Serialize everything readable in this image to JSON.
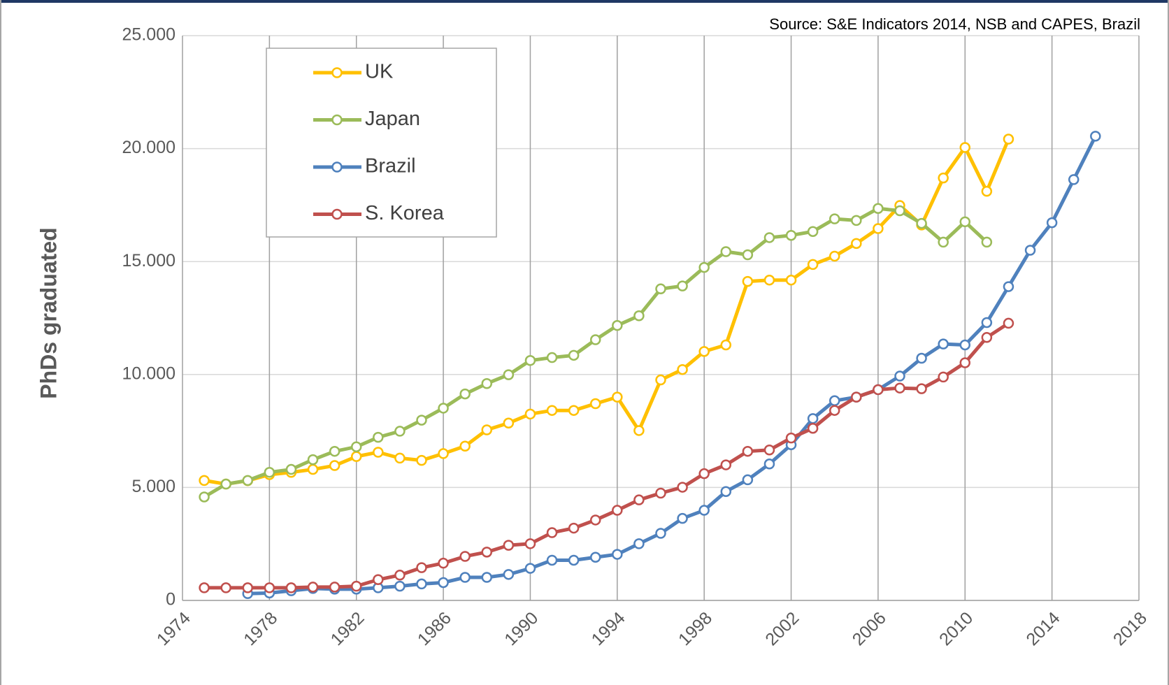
{
  "chart_data": {
    "type": "line",
    "source": "Source: S&E Indicators 2014, NSB and CAPES, Brazil",
    "y_label": "PhDs graduated",
    "x": [
      1975,
      1976,
      1977,
      1978,
      1979,
      1980,
      1981,
      1982,
      1983,
      1984,
      1985,
      1986,
      1987,
      1988,
      1989,
      1990,
      1991,
      1992,
      1993,
      1994,
      1995,
      1996,
      1997,
      1998,
      1999,
      2000,
      2001,
      2002,
      2003,
      2004,
      2005,
      2006,
      2007,
      2008,
      2009,
      2010,
      2011,
      2012,
      2013,
      2014,
      2015,
      2016
    ],
    "series": [
      {
        "name": "UK",
        "color": "#ffc000",
        "values": [
          5310,
          5150,
          5300,
          5570,
          5670,
          5800,
          5970,
          6370,
          6560,
          6300,
          6200,
          6500,
          6830,
          7550,
          7850,
          8250,
          8410,
          8410,
          8710,
          9000,
          7520,
          9760,
          10220,
          11020,
          11310,
          14120,
          14180,
          14180,
          14870,
          15240,
          15800,
          16460,
          17480,
          16620,
          18700,
          20050,
          18110,
          20420,
          null,
          null,
          null,
          null
        ]
      },
      {
        "name": "Japan",
        "color": "#9bbb59",
        "values": [
          4580,
          5150,
          5310,
          5670,
          5800,
          6230,
          6600,
          6800,
          7220,
          7490,
          7980,
          8510,
          9140,
          9600,
          9990,
          10620,
          10750,
          10850,
          11540,
          12170,
          12600,
          13790,
          13920,
          14740,
          15440,
          15300,
          16060,
          16160,
          16330,
          16890,
          16820,
          17350,
          17250,
          16690,
          15860,
          16760,
          15860,
          null,
          null,
          null,
          null,
          null
        ]
      },
      {
        "name": "Brazil",
        "color": "#4f81bd",
        "values": [
          null,
          null,
          300,
          330,
          430,
          530,
          500,
          500,
          560,
          630,
          730,
          790,
          1020,
          1020,
          1150,
          1420,
          1780,
          1780,
          1910,
          2040,
          2510,
          2970,
          3630,
          3990,
          4820,
          5340,
          6040,
          6890,
          8050,
          8840,
          9000,
          9330,
          9930,
          10720,
          11350,
          11310,
          12300,
          13890,
          15500,
          16720,
          18630,
          20550
        ]
      },
      {
        "name": "S. Korea",
        "color": "#c0504d",
        "values": [
          560,
          560,
          560,
          560,
          560,
          590,
          590,
          630,
          920,
          1120,
          1450,
          1650,
          1950,
          2140,
          2440,
          2510,
          3000,
          3200,
          3560,
          3990,
          4450,
          4750,
          5010,
          5610,
          6000,
          6600,
          6660,
          7190,
          7620,
          8410,
          9000,
          9330,
          9400,
          9370,
          9890,
          10520,
          11640,
          12270,
          null,
          null,
          null,
          null
        ]
      }
    ],
    "xlim": [
      1974,
      2018
    ],
    "xticks": [
      1974,
      1978,
      1982,
      1986,
      1990,
      1994,
      1998,
      2002,
      2006,
      2010,
      2014,
      2018
    ],
    "ylim": [
      0,
      25000
    ],
    "yticks": [
      0,
      {
        "value": 5000,
        "label": "5.000"
      },
      {
        "value": 10000,
        "label": "10.000"
      },
      {
        "value": 15000,
        "label": "15.000"
      },
      {
        "value": 20000,
        "label": "20.000"
      },
      {
        "value": 25000,
        "label": "25.000"
      }
    ],
    "grid": true,
    "legend": "upper left"
  }
}
